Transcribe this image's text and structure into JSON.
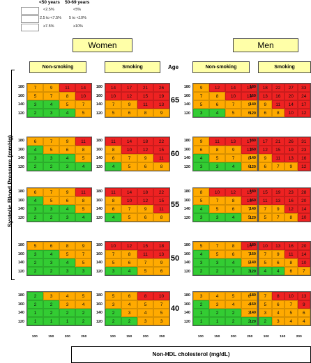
{
  "legend": {
    "header_lt50": "<50 years",
    "header_50_69": "50-69 years",
    "rows": [
      {
        "color": "#33cc33",
        "lt50": "<2.5%",
        "age50_69": "<5%"
      },
      {
        "color": "#ffaa00",
        "lt50": "2.5 to <7.5%",
        "age50_69": "5 to <10%"
      },
      {
        "color": "#ee2222",
        "lt50": "≥7.5%",
        "age50_69": "≥10%"
      }
    ]
  },
  "labels": {
    "women": "Women",
    "men": "Men",
    "non_smoking": "Non-smoking",
    "smoking": "Smoking",
    "age": "Age",
    "ylabel": "Systolic Blood Pressure (mmHg)",
    "xlabel": "Non-HDL cholesterol (mg/dL)"
  },
  "colors": {
    "green": "#33cc33",
    "orange": "#ffaa00",
    "red": "#ee2222",
    "box": "#ffffa8"
  },
  "chart_data": {
    "type": "heatmap",
    "sbp_levels": [
      "180",
      "160",
      "140",
      "120"
    ],
    "chol_levels": [
      "100",
      "150",
      "200",
      "250"
    ],
    "ages": [
      "65",
      "60",
      "55",
      "50",
      "40"
    ],
    "panels": {
      "women_nonsmoking": {
        "65": [
          [
            "7",
            "9",
            "11",
            "14"
          ],
          [
            "5",
            "7",
            "8",
            "10"
          ],
          [
            "3",
            "4",
            "5",
            "7"
          ],
          [
            "2",
            "3",
            "4",
            "5"
          ]
        ],
        "60": [
          [
            "6",
            "7",
            "9",
            "11"
          ],
          [
            "4",
            "5",
            "6",
            "8"
          ],
          [
            "3",
            "3",
            "4",
            "5"
          ],
          [
            "2",
            "2",
            "3",
            "4"
          ]
        ],
        "55": [
          [
            "6",
            "7",
            "9",
            "11"
          ],
          [
            "4",
            "5",
            "6",
            "8"
          ],
          [
            "3",
            "3",
            "4",
            "5"
          ],
          [
            "2",
            "2",
            "3",
            "4"
          ]
        ],
        "50": [
          [
            "5",
            "6",
            "8",
            "9"
          ],
          [
            "3",
            "4",
            "5",
            "7"
          ],
          [
            "2",
            "3",
            "4",
            "5"
          ],
          [
            "2",
            "2",
            "3",
            "3"
          ]
        ],
        "40": [
          [
            "2",
            "3",
            "4",
            "5"
          ],
          [
            "2",
            "2",
            "3",
            "4"
          ],
          [
            "1",
            "2",
            "2",
            "2"
          ],
          [
            "1",
            "1",
            "1",
            "2"
          ]
        ]
      },
      "women_smoking": {
        "65": [
          [
            "14",
            "17",
            "21",
            "26"
          ],
          [
            "10",
            "12",
            "15",
            "19"
          ],
          [
            "7",
            "9",
            "11",
            "13"
          ],
          [
            "5",
            "6",
            "8",
            "9"
          ]
        ],
        "60": [
          [
            "11",
            "14",
            "18",
            "22"
          ],
          [
            "8",
            "10",
            "12",
            "15"
          ],
          [
            "6",
            "7",
            "9",
            "11"
          ],
          [
            "4",
            "5",
            "6",
            "8"
          ]
        ],
        "55": [
          [
            "11",
            "14",
            "18",
            "22"
          ],
          [
            "8",
            "10",
            "12",
            "15"
          ],
          [
            "6",
            "7",
            "9",
            "11"
          ],
          [
            "4",
            "5",
            "6",
            "8"
          ]
        ],
        "50": [
          [
            "10",
            "12",
            "15",
            "18"
          ],
          [
            "7",
            "8",
            "11",
            "13"
          ],
          [
            "5",
            "6",
            "7",
            "9"
          ],
          [
            "3",
            "4",
            "5",
            "6"
          ]
        ],
        "40": [
          [
            "5",
            "6",
            "8",
            "10"
          ],
          [
            "3",
            "4",
            "5",
            "7"
          ],
          [
            "2",
            "3",
            "4",
            "5"
          ],
          [
            "2",
            "2",
            "3",
            "3"
          ]
        ]
      },
      "men_nonsmoking": {
        "65": [
          [
            "9",
            "12",
            "14",
            "18"
          ],
          [
            "7",
            "8",
            "10",
            "13"
          ],
          [
            "5",
            "6",
            "7",
            "9"
          ],
          [
            "3",
            "4",
            "5",
            "6"
          ]
        ],
        "60": [
          [
            "9",
            "11",
            "13",
            "17"
          ],
          [
            "6",
            "8",
            "9",
            "12"
          ],
          [
            "4",
            "5",
            "7",
            "8"
          ],
          [
            "3",
            "3",
            "4",
            "6"
          ]
        ],
        "55": [
          [
            "8",
            "10",
            "12",
            "15"
          ],
          [
            "5",
            "7",
            "8",
            "10"
          ],
          [
            "4",
            "5",
            "6",
            "7"
          ],
          [
            "3",
            "3",
            "4",
            "5"
          ]
        ],
        "50": [
          [
            "5",
            "7",
            "8",
            "10"
          ],
          [
            "4",
            "5",
            "6",
            "7"
          ],
          [
            "3",
            "3",
            "4",
            "5"
          ],
          [
            "2",
            "2",
            "3",
            "3"
          ]
        ],
        "40": [
          [
            "3",
            "4",
            "5",
            "6"
          ],
          [
            "2",
            "3",
            "4",
            "4"
          ],
          [
            "1",
            "2",
            "2",
            "3"
          ],
          [
            "1",
            "1",
            "2",
            "2"
          ]
        ]
      },
      "men_smoking": {
        "65": [
          [
            "18",
            "22",
            "27",
            "33"
          ],
          [
            "13",
            "16",
            "20",
            "24"
          ],
          [
            "9",
            "11",
            "14",
            "17"
          ],
          [
            "6",
            "8",
            "10",
            "12"
          ]
        ],
        "60": [
          [
            "17",
            "21",
            "26",
            "31"
          ],
          [
            "12",
            "15",
            "19",
            "23"
          ],
          [
            "9",
            "11",
            "13",
            "16"
          ],
          [
            "6",
            "7",
            "9",
            "12"
          ]
        ],
        "55": [
          [
            "15",
            "19",
            "23",
            "28"
          ],
          [
            "11",
            "13",
            "16",
            "20"
          ],
          [
            "7",
            "9",
            "12",
            "14"
          ],
          [
            "5",
            "7",
            "8",
            "10"
          ]
        ],
        "50": [
          [
            "10",
            "13",
            "16",
            "20"
          ],
          [
            "7",
            "9",
            "11",
            "14"
          ],
          [
            "5",
            "6",
            "8",
            "10"
          ],
          [
            "4",
            "4",
            "6",
            "7"
          ]
        ],
        "40": [
          [
            "7",
            "8",
            "10",
            "13"
          ],
          [
            "5",
            "6",
            "7",
            "9"
          ],
          [
            "3",
            "4",
            "5",
            "6"
          ],
          [
            "2",
            "3",
            "4",
            "4"
          ]
        ]
      }
    }
  }
}
